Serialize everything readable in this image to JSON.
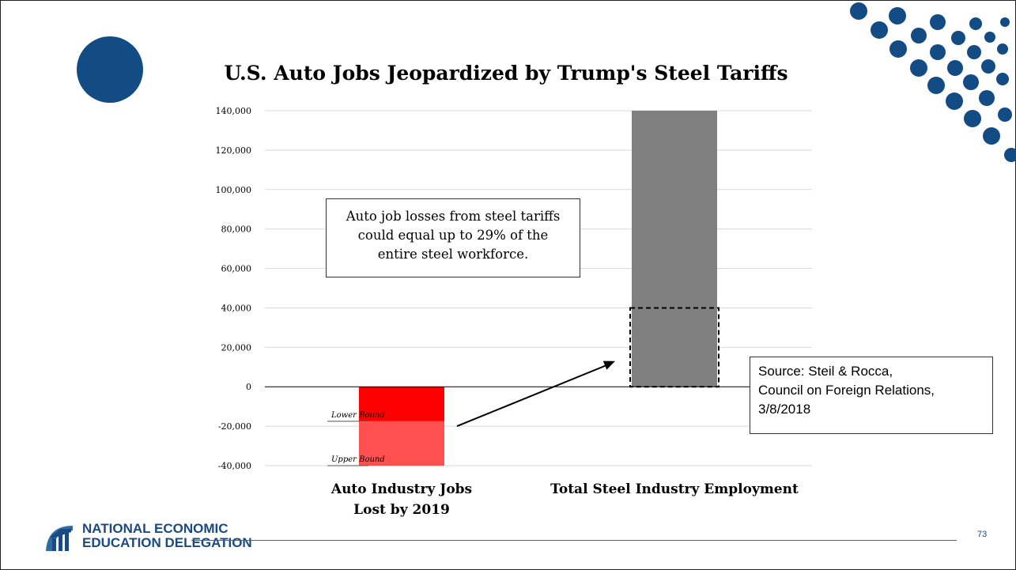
{
  "slide": {
    "title": "U.S. Auto Jobs Jeopardized by Trump's Steel Tariffs",
    "callout_lines": [
      "Auto job losses from steel tariffs",
      "could equal up to 29% of the",
      "entire steel workforce."
    ],
    "source_lines": [
      "Source:  Steil & Rocca,",
      "Council on Foreign Relations,",
      "3/8/2018"
    ],
    "logo_lines": [
      "NATIONAL ECONOMIC",
      "EDUCATION DELEGATION"
    ],
    "page_number": "73",
    "accent_color": "#134b84"
  },
  "chart_data": {
    "type": "bar",
    "title": "U.S. Auto Jobs Jeopardized by Trump's Steel Tariffs",
    "ylim": [
      -40000,
      140000
    ],
    "yticks": [
      140000,
      120000,
      100000,
      80000,
      60000,
      40000,
      20000,
      0,
      -20000,
      -40000
    ],
    "ytick_labels": [
      "140,000",
      "120,000",
      "100,000",
      "80,000",
      "60,000",
      "40,000",
      "20,000",
      "0",
      "-20,000",
      "-40,000"
    ],
    "grid": true,
    "categories": [
      {
        "label_lines": [
          "Auto Industry Jobs",
          "Lost by 2019"
        ]
      },
      {
        "label_lines": [
          "Total Steel Industry Employment"
        ]
      }
    ],
    "bars": [
      {
        "category": 0,
        "segments": [
          {
            "label": "Lower Bound",
            "from": 0,
            "to": -17500,
            "color": "#ff0000"
          },
          {
            "label": "Upper Bound",
            "from": -17500,
            "to": -40000,
            "color": "#ff5050"
          }
        ]
      },
      {
        "category": 1,
        "segments": [
          {
            "label": "",
            "from": 0,
            "to": 140000,
            "color": "#808080"
          }
        ],
        "dashed_overlay": {
          "from": 0,
          "to": 40000
        }
      }
    ],
    "arrow": {
      "from": [
        0,
        -20000
      ],
      "to": [
        1,
        13000
      ]
    }
  }
}
